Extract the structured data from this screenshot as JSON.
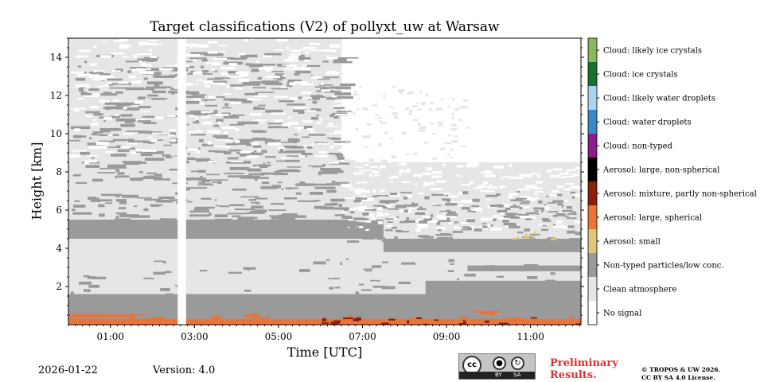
{
  "chart_data": {
    "type": "heatmap",
    "title": "Target classifications (V2) of pollyxt_uw at Warsaw",
    "xlabel": "Time [UTC]",
    "ylabel": "Height [km]",
    "x_range_hours": [
      0.0,
      12.2
    ],
    "y_range_km": [
      0.0,
      15.0
    ],
    "x_ticks": [
      "01:00",
      "03:00",
      "05:00",
      "07:00",
      "09:00",
      "11:00"
    ],
    "x_tick_values": [
      1,
      3,
      5,
      7,
      9,
      11
    ],
    "y_ticks": [
      "2",
      "4",
      "6",
      "8",
      "10",
      "12",
      "14"
    ],
    "y_tick_values": [
      2,
      4,
      6,
      8,
      10,
      12,
      14
    ],
    "data_gap_hours": [
      2.6,
      2.8
    ],
    "classes": [
      {
        "value": 0,
        "label": "No signal",
        "color": "#ffffff"
      },
      {
        "value": 1,
        "label": "Clean atmosphere",
        "color": "#e6e6e6"
      },
      {
        "value": 2,
        "label": "Non-typed particles/low conc.",
        "color": "#9a9a9a"
      },
      {
        "value": 3,
        "label": "Aerosol: small",
        "color": "#dcc878"
      },
      {
        "value": 4,
        "label": "Aerosol: large, spherical",
        "color": "#e8743a"
      },
      {
        "value": 5,
        "label": "Aerosol: mixture, partly non-spherical",
        "color": "#8c1f0a"
      },
      {
        "value": 6,
        "label": "Aerosol: large, non-spherical",
        "color": "#000000"
      },
      {
        "value": 7,
        "label": "Cloud: non-typed",
        "color": "#8a1f8a"
      },
      {
        "value": 8,
        "label": "Cloud: water droplets",
        "color": "#3c88c8"
      },
      {
        "value": 9,
        "label": "Cloud: likely water droplets",
        "color": "#aad4f0"
      },
      {
        "value": 10,
        "label": "Cloud: ice crystals",
        "color": "#1a7030"
      },
      {
        "value": 11,
        "label": "Cloud: likely ice crystals",
        "color": "#88b860"
      }
    ],
    "layers": [
      {
        "class": 4,
        "from_km": 0.0,
        "to_km": 0.3,
        "from_h": 0.0,
        "to_h": 12.2
      },
      {
        "class": 2,
        "from_km": 0.3,
        "to_km": 1.6,
        "from_h": 0.0,
        "to_h": 12.2
      },
      {
        "class": 2,
        "from_km": 4.5,
        "to_km": 5.5,
        "from_h": 0.0,
        "to_h": 7.5
      },
      {
        "class": 2,
        "from_km": 3.8,
        "to_km": 4.5,
        "from_h": 7.5,
        "to_h": 12.2
      },
      {
        "class": 1,
        "from_km": 1.6,
        "to_km": 8.5,
        "from_h": 0.0,
        "to_h": 12.2
      },
      {
        "class": 1,
        "from_km": 8.5,
        "to_km": 15.0,
        "from_h": 0.0,
        "to_h": 6.5
      }
    ]
  },
  "footer": {
    "date": "2026-01-22",
    "version": "Version: 4.0",
    "preliminary_line1": "Preliminary",
    "preliminary_line2": "Results.",
    "copyright_line1": "© TROPOS & UW 2026.",
    "copyright_line2": "CC BY SA 4.0 License.",
    "license_badge": {
      "cc": "cc",
      "by": "BY",
      "sa": "SA"
    }
  }
}
